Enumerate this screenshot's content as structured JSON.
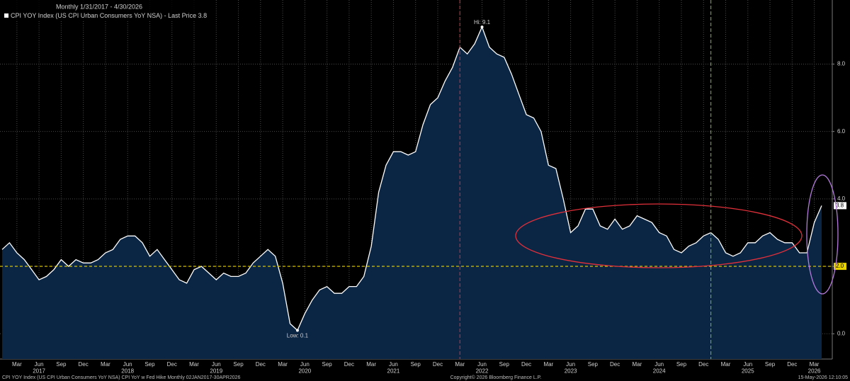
{
  "chart_data": {
    "type": "line",
    "subtitle": "Monthly 1/31/2017 - 4/30/2026",
    "x": [
      "2017-01",
      "2017-02",
      "2017-03",
      "2017-04",
      "2017-05",
      "2017-06",
      "2017-07",
      "2017-08",
      "2017-09",
      "2017-10",
      "2017-11",
      "2017-12",
      "2018-01",
      "2018-02",
      "2018-03",
      "2018-04",
      "2018-05",
      "2018-06",
      "2018-07",
      "2018-08",
      "2018-09",
      "2018-10",
      "2018-11",
      "2018-12",
      "2019-01",
      "2019-02",
      "2019-03",
      "2019-04",
      "2019-05",
      "2019-06",
      "2019-07",
      "2019-08",
      "2019-09",
      "2019-10",
      "2019-11",
      "2019-12",
      "2020-01",
      "2020-02",
      "2020-03",
      "2020-04",
      "2020-05",
      "2020-06",
      "2020-07",
      "2020-08",
      "2020-09",
      "2020-10",
      "2020-11",
      "2020-12",
      "2021-01",
      "2021-02",
      "2021-03",
      "2021-04",
      "2021-05",
      "2021-06",
      "2021-07",
      "2021-08",
      "2021-09",
      "2021-10",
      "2021-11",
      "2021-12",
      "2022-01",
      "2022-02",
      "2022-03",
      "2022-04",
      "2022-05",
      "2022-06",
      "2022-07",
      "2022-08",
      "2022-09",
      "2022-10",
      "2022-11",
      "2022-12",
      "2023-01",
      "2023-02",
      "2023-03",
      "2023-04",
      "2023-05",
      "2023-06",
      "2023-07",
      "2023-08",
      "2023-09",
      "2023-10",
      "2023-11",
      "2023-12",
      "2024-01",
      "2024-02",
      "2024-03",
      "2024-04",
      "2024-05",
      "2024-06",
      "2024-07",
      "2024-08",
      "2024-09",
      "2024-10",
      "2024-11",
      "2024-12",
      "2025-01",
      "2025-02",
      "2025-03",
      "2025-04",
      "2025-05",
      "2025-06",
      "2025-07",
      "2025-08",
      "2025-09",
      "2025-10",
      "2025-11",
      "2025-12",
      "2026-01",
      "2026-02",
      "2026-03",
      "2026-04"
    ],
    "series": [
      {
        "name": "CPI YOY Index (US CPI Urban Consumers YoY NSA) - Last Price 3.8",
        "color": "#ffffff",
        "fill": "#0b2545",
        "values": [
          2.5,
          2.7,
          2.4,
          2.2,
          1.9,
          1.6,
          1.7,
          1.9,
          2.2,
          2.0,
          2.2,
          2.1,
          2.1,
          2.2,
          2.4,
          2.5,
          2.8,
          2.9,
          2.9,
          2.7,
          2.3,
          2.5,
          2.2,
          1.9,
          1.6,
          1.5,
          1.9,
          2.0,
          1.8,
          1.6,
          1.8,
          1.7,
          1.7,
          1.8,
          2.1,
          2.3,
          2.5,
          2.3,
          1.5,
          0.3,
          0.1,
          0.6,
          1.0,
          1.3,
          1.4,
          1.2,
          1.2,
          1.4,
          1.4,
          1.7,
          2.6,
          4.2,
          5.0,
          5.4,
          5.4,
          5.3,
          5.4,
          6.2,
          6.8,
          7.0,
          7.5,
          7.9,
          8.5,
          8.3,
          8.6,
          9.1,
          8.5,
          8.3,
          8.2,
          7.7,
          7.1,
          6.5,
          6.4,
          6.0,
          5.0,
          4.9,
          4.0,
          3.0,
          3.2,
          3.7,
          3.7,
          3.2,
          3.1,
          3.4,
          3.1,
          3.2,
          3.5,
          3.4,
          3.3,
          3.0,
          2.9,
          2.5,
          2.4,
          2.6,
          2.7,
          2.9,
          3.0,
          2.8,
          2.4,
          2.3,
          2.4,
          2.7,
          2.7,
          2.9,
          3.0,
          2.8,
          2.7,
          2.7,
          2.4,
          2.4,
          3.3,
          3.8
        ]
      }
    ],
    "ylim": [
      -0.75,
      9.9
    ],
    "yticks": [
      {
        "value": 0,
        "label": "0.0"
      },
      {
        "value": 2,
        "label": "2.0"
      },
      {
        "value": 4,
        "label": "4.0"
      },
      {
        "value": 6,
        "label": "6.0"
      },
      {
        "value": 8,
        "label": "8.0"
      }
    ],
    "xticks": [
      {
        "value": "2017-03",
        "label": "Mar"
      },
      {
        "value": "2017-06",
        "label": "Jun"
      },
      {
        "value": "2017-09",
        "label": "Sep"
      },
      {
        "value": "2017-12",
        "label": "Dec"
      },
      {
        "value": "2018-03",
        "label": "Mar"
      },
      {
        "value": "2018-06",
        "label": "Jun"
      },
      {
        "value": "2018-09",
        "label": "Sep"
      },
      {
        "value": "2018-12",
        "label": "Dec"
      },
      {
        "value": "2019-03",
        "label": "Mar"
      },
      {
        "value": "2019-06",
        "label": "Jun"
      },
      {
        "value": "2019-09",
        "label": "Sep"
      },
      {
        "value": "2019-12",
        "label": "Dec"
      },
      {
        "value": "2020-03",
        "label": "Mar"
      },
      {
        "value": "2020-06",
        "label": "Jun"
      },
      {
        "value": "2020-09",
        "label": "Sep"
      },
      {
        "value": "2020-12",
        "label": "Dec"
      },
      {
        "value": "2021-03",
        "label": "Mar"
      },
      {
        "value": "2021-06",
        "label": "Jun"
      },
      {
        "value": "2021-09",
        "label": "Sep"
      },
      {
        "value": "2021-12",
        "label": "Dec"
      },
      {
        "value": "2022-03",
        "label": "Mar"
      },
      {
        "value": "2022-06",
        "label": "Jun"
      },
      {
        "value": "2022-09",
        "label": "Sep"
      },
      {
        "value": "2022-12",
        "label": "Dec"
      },
      {
        "value": "2023-03",
        "label": "Mar"
      },
      {
        "value": "2023-06",
        "label": "Jun"
      },
      {
        "value": "2023-09",
        "label": "Sep"
      },
      {
        "value": "2023-12",
        "label": "Dec"
      },
      {
        "value": "2024-03",
        "label": "Mar"
      },
      {
        "value": "2024-06",
        "label": "Jun"
      },
      {
        "value": "2024-09",
        "label": "Sep"
      },
      {
        "value": "2024-12",
        "label": "Dec"
      },
      {
        "value": "2025-03",
        "label": "Mar"
      },
      {
        "value": "2025-06",
        "label": "Jun"
      },
      {
        "value": "2025-09",
        "label": "Sep"
      },
      {
        "value": "2025-12",
        "label": "Dec"
      },
      {
        "value": "2026-03",
        "label": "Mar"
      }
    ],
    "year_labels": [
      {
        "value": "2017-06",
        "label": "2017"
      },
      {
        "value": "2018-06",
        "label": "2018"
      },
      {
        "value": "2019-06",
        "label": "2019"
      },
      {
        "value": "2020-06",
        "label": "2020"
      },
      {
        "value": "2021-06",
        "label": "2021"
      },
      {
        "value": "2022-06",
        "label": "2022"
      },
      {
        "value": "2023-06",
        "label": "2023"
      },
      {
        "value": "2024-06",
        "label": "2024"
      },
      {
        "value": "2025-06",
        "label": "2025"
      },
      {
        "value": "2026-03",
        "label": "2026"
      }
    ],
    "grid": true,
    "reference_lines": [
      {
        "value": 2,
        "label": "2.0",
        "color": "#e8d200"
      }
    ],
    "vertical_markers": [
      {
        "x": "2022-03",
        "color": "#e0303a"
      },
      {
        "x": "2025-01",
        "color": "#7bbf2a"
      }
    ],
    "annotations": [
      {
        "x": "2022-06",
        "y": 9.1,
        "label": "Hi: 9.1"
      },
      {
        "x": "2020-05",
        "y": 0.1,
        "label": "Low: 0.1"
      }
    ],
    "last_price": {
      "value": 3.8,
      "label": "3.8"
    },
    "footer": {
      "left": "CPI YOY Index (US CPI Urban Consumers YoY NSA) CPI YoY w Fed Hike Monthly 02JAN2017-30APR2026",
      "center": "Copyright© 2026 Bloomberg Finance L.P.",
      "right": "15-May-2026 12:10:05"
    }
  }
}
